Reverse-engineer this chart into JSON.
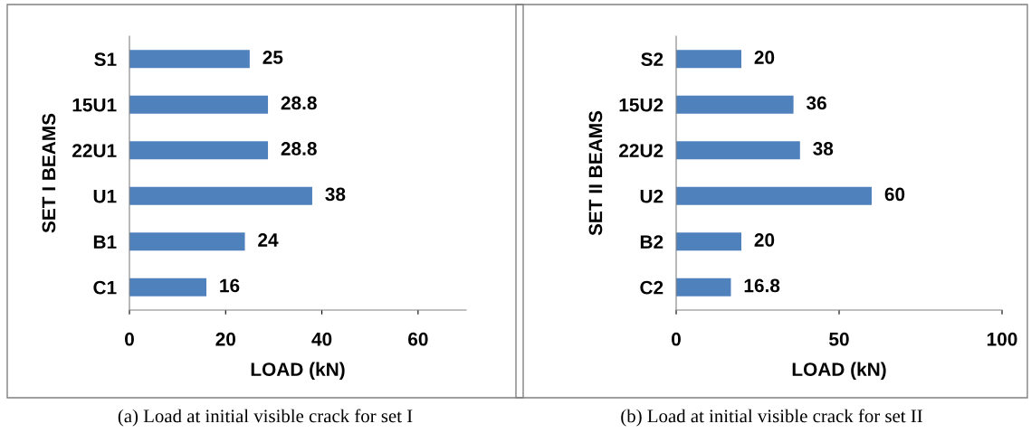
{
  "chart_data": [
    {
      "type": "bar",
      "orientation": "horizontal",
      "categories": [
        "S1",
        "15U1",
        "22U1",
        "U1",
        "B1",
        "C1"
      ],
      "values": [
        25,
        28.8,
        28.8,
        38,
        24,
        16
      ],
      "color": "#4f81bd",
      "xlim": [
        0,
        70
      ],
      "xticks": [
        0,
        20,
        40,
        60
      ],
      "xlabel": "LOAD (kN)",
      "ylabel": "SET I BEAMS",
      "data_labels": true,
      "grid": false,
      "annotations": [
        "(a) Load at initial visible crack for set I"
      ]
    },
    {
      "type": "bar",
      "orientation": "horizontal",
      "categories": [
        "S2",
        "15U2",
        "22U2",
        "U2",
        "B2",
        "C2"
      ],
      "values": [
        20,
        36,
        38,
        60,
        20,
        16.8
      ],
      "color": "#4f81bd",
      "xlim": [
        0,
        100
      ],
      "xticks": [
        0,
        50,
        100
      ],
      "xlabel": "LOAD (kN)",
      "ylabel": "SET II BEAMS",
      "data_labels": true,
      "grid": false,
      "annotations": [
        "(b) Load at initial visible crack for set II"
      ]
    }
  ]
}
